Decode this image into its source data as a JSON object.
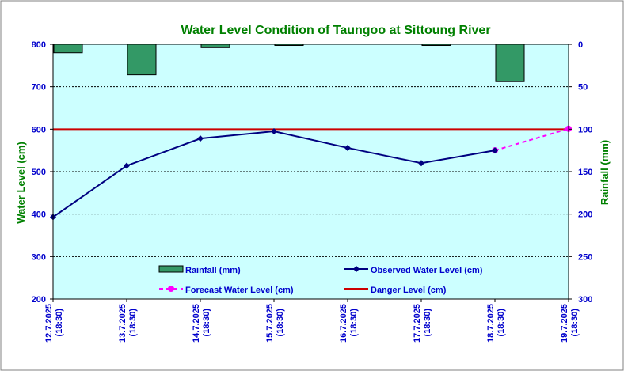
{
  "chart_data": {
    "type": "bar+line",
    "title": "Water Level Condition of Taungoo at  Sittoung River",
    "ylabel_left": "Water Level (cm)",
    "ylabel_right": "Rainfall (mm)",
    "ylim_left": [
      200,
      800
    ],
    "yticks_left": [
      "200",
      "300",
      "400",
      "500",
      "600",
      "700",
      "800"
    ],
    "ylim_right": [
      0,
      300
    ],
    "right_axis_inverted": true,
    "yticks_right": [
      "0",
      "50",
      "100",
      "150",
      "200",
      "250",
      "300"
    ],
    "categories": [
      [
        "12.7.2025",
        "(18:30)"
      ],
      [
        "13.7.2025",
        "(18:30)"
      ],
      [
        "14.7.2025",
        "(18:30)"
      ],
      [
        "15.7.2025",
        "(18:30)"
      ],
      [
        "16.7.2025",
        "(18:30)"
      ],
      [
        "17.7.2025",
        "(18:30)"
      ],
      [
        "18.7.2025",
        "(18:30)"
      ],
      [
        "19.7.2025",
        "(18:30)"
      ]
    ],
    "series": [
      {
        "name": "Rainfall (mm)",
        "kind": "bar",
        "axis": "right",
        "color": "#339966",
        "values": [
          10,
          36,
          4,
          1,
          null,
          1,
          44,
          null
        ]
      },
      {
        "name": "Observed Water Level (cm)",
        "kind": "line",
        "axis": "left",
        "color": "#000080",
        "values": [
          393,
          514,
          578,
          595,
          556,
          520,
          550,
          null
        ]
      },
      {
        "name": "Forecast Water Level (cm)",
        "kind": "line-dashed",
        "axis": "left",
        "color": "#FF00FF",
        "values": [
          null,
          null,
          null,
          null,
          null,
          null,
          550,
          601
        ]
      },
      {
        "name": "Danger Level (cm)",
        "kind": "hline",
        "axis": "left",
        "color": "#CC0000",
        "value": 600
      }
    ],
    "grid": "horizontal dashed",
    "legend_placement": "bottom-center, inside plot",
    "plot_background": "#CCFFFF",
    "title_color": "#008000",
    "axis_title_color": "#008000",
    "tick_color": "#0000CC"
  }
}
